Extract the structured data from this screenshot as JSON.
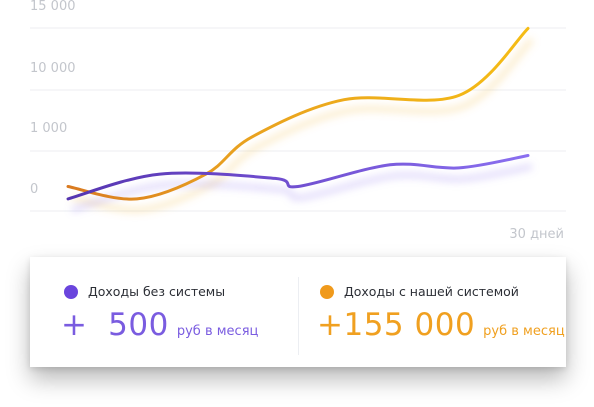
{
  "chart_data": {
    "type": "line",
    "y_tick_labels": [
      "15 000",
      "10 000",
      "1 000",
      "0"
    ],
    "x_end_label": "30 дней",
    "grid": true,
    "series": [
      {
        "name": "Доходы без системы",
        "color": "#7a5ce0",
        "values": [
          0.05,
          0.45,
          0.38,
          0.25,
          0.6,
          0.55,
          0.75
        ],
        "x": [
          0,
          0.2,
          0.45,
          0.5,
          0.7,
          0.85,
          1.0
        ]
      },
      {
        "name": "Доходы с нашей системой",
        "color": "#f0a818",
        "values": [
          0.25,
          0.05,
          0.45,
          1.05,
          1.65,
          1.72,
          2.8
        ],
        "x": [
          0,
          0.15,
          0.3,
          0.4,
          0.6,
          0.85,
          1.0
        ]
      }
    ]
  },
  "legend": {
    "left": {
      "label": "Доходы без системы",
      "value": "+  500",
      "unit": "руб в месяц",
      "color": "#7a5ce0"
    },
    "right": {
      "label": "Доходы с нашей системой",
      "value": "+155 000",
      "unit": "руб в месяц",
      "color": "#f0a818"
    }
  }
}
